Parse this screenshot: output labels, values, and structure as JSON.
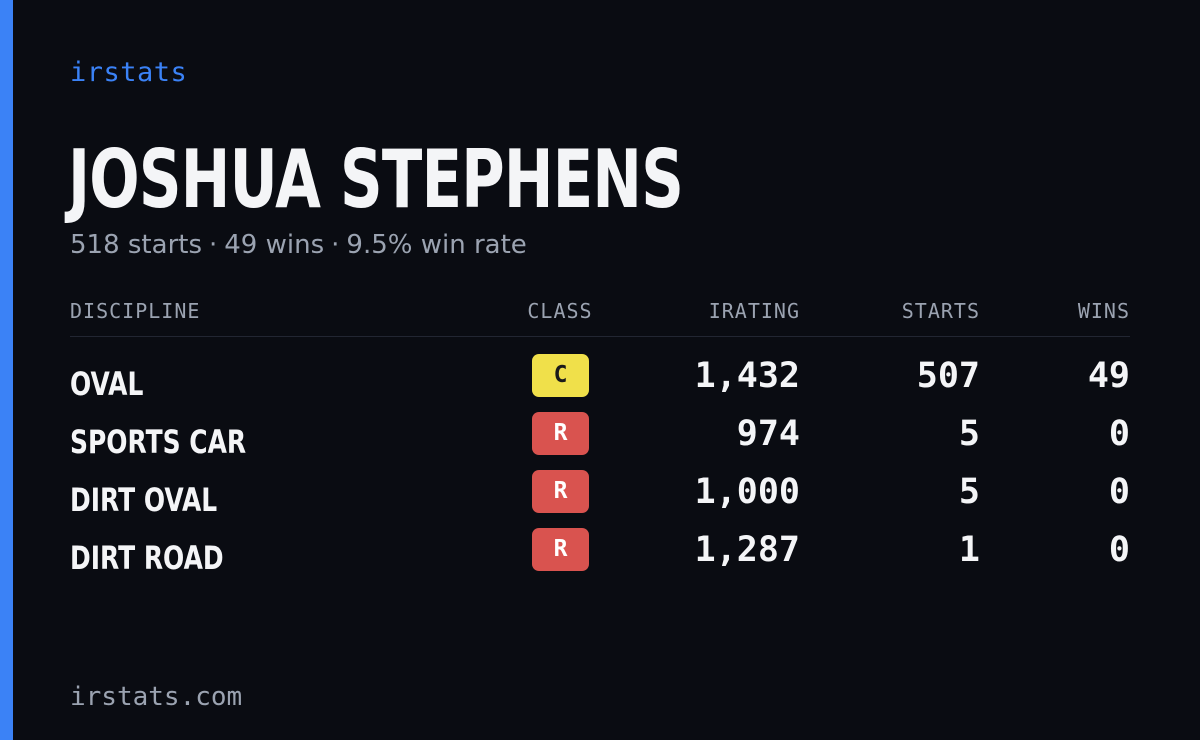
{
  "brand": "irstats",
  "player": {
    "name": "JOSHUA STEPHENS",
    "starts_text": "518 starts",
    "wins_text": "49 wins",
    "win_rate_text": "9.5% win rate",
    "separator": "·"
  },
  "table": {
    "headers": {
      "discipline": "DISCIPLINE",
      "class": "CLASS",
      "irating": "IRATING",
      "starts": "STARTS",
      "wins": "WINS"
    },
    "rows": [
      {
        "discipline": "OVAL",
        "class": "C",
        "class_color": "#f0e04a",
        "class_text_color": "#1a1a1a",
        "irating": "1,432",
        "starts": "507",
        "wins": "49"
      },
      {
        "discipline": "SPORTS CAR",
        "class": "R",
        "class_color": "#d9534f",
        "class_text_color": "#ffffff",
        "irating": "974",
        "starts": "5",
        "wins": "0"
      },
      {
        "discipline": "DIRT OVAL",
        "class": "R",
        "class_color": "#d9534f",
        "class_text_color": "#ffffff",
        "irating": "1,000",
        "starts": "5",
        "wins": "0"
      },
      {
        "discipline": "DIRT ROAD",
        "class": "R",
        "class_color": "#d9534f",
        "class_text_color": "#ffffff",
        "irating": "1,287",
        "starts": "1",
        "wins": "0"
      }
    ]
  },
  "footer": "irstats.com",
  "colors": {
    "background": "#0a0c12",
    "accent": "#3b82f6",
    "muted": "#9ba3b1",
    "text": "#f4f5f7"
  }
}
